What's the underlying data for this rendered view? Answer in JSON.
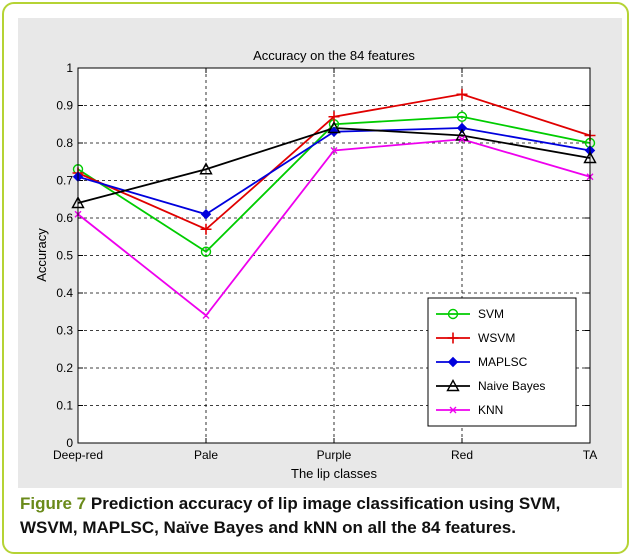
{
  "caption": {
    "label": "Figure 7",
    "text": "Prediction accuracy of lip image classification using SVM, WSVM, MAPLSC, Naïve Bayes and kNN on all the 84 features."
  },
  "chart_data": {
    "type": "line",
    "title": "Accuracy on the 84 features",
    "xlabel": "The lip classes",
    "ylabel": "Accuracy",
    "categories": [
      "Deep-red",
      "Pale",
      "Purple",
      "Red",
      "TA"
    ],
    "ylim": [
      0,
      1
    ],
    "yticks": [
      0,
      0.1,
      0.2,
      0.3,
      0.4,
      0.5,
      0.6,
      0.7,
      0.8,
      0.9,
      1
    ],
    "ytick_labels": [
      "0",
      "0.1",
      "0.2",
      "0.3",
      "0.4",
      "0.5",
      "0.6",
      "0.7",
      "0.8",
      "0.9",
      "1"
    ],
    "grid": true,
    "legend_position": "bottom-right",
    "series": [
      {
        "name": "SVM",
        "color": "#00cc00",
        "marker": "circle",
        "values": [
          0.73,
          0.51,
          0.85,
          0.87,
          0.8
        ]
      },
      {
        "name": "WSVM",
        "color": "#e00000",
        "marker": "plus",
        "values": [
          0.72,
          0.57,
          0.87,
          0.93,
          0.82
        ]
      },
      {
        "name": "MAPLSC",
        "color": "#0000dd",
        "marker": "diamond",
        "values": [
          0.71,
          0.61,
          0.83,
          0.84,
          0.78
        ]
      },
      {
        "name": "Naive Bayes",
        "color": "#000000",
        "marker": "triangle",
        "values": [
          0.64,
          0.73,
          0.84,
          0.82,
          0.76
        ]
      },
      {
        "name": "KNN",
        "color": "#ee00ee",
        "marker": "x",
        "values": [
          0.61,
          0.34,
          0.78,
          0.81,
          0.71
        ]
      }
    ]
  }
}
